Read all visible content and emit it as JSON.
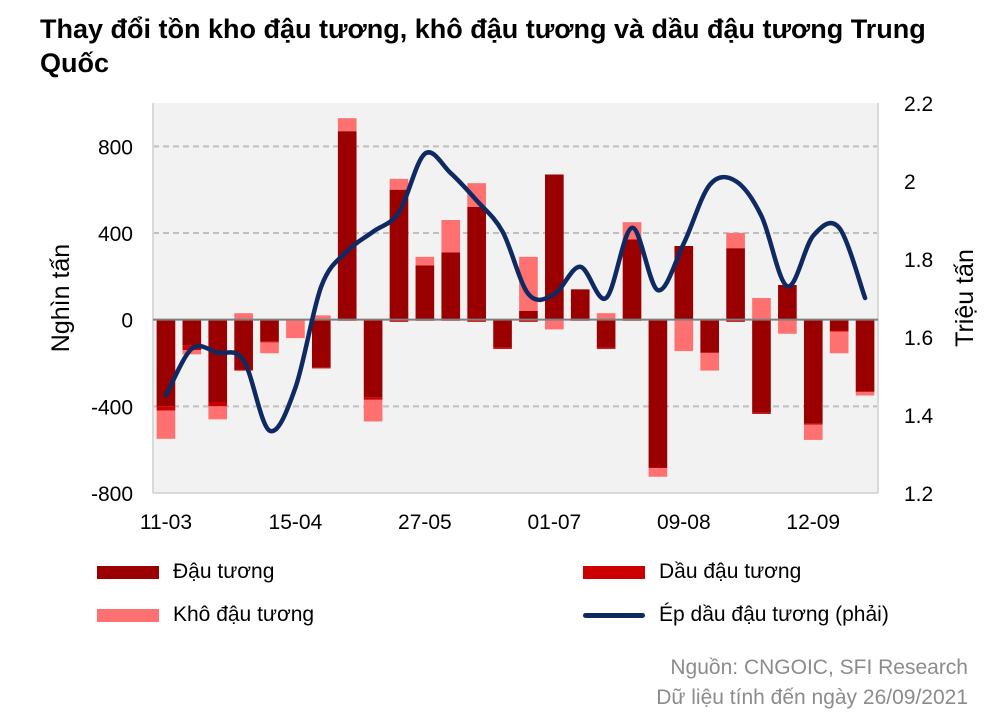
{
  "title": "Thay đổi tồn kho đậu tương, khô đậu tương và dầu đậu tương Trung Quốc",
  "source_line1": "Nguồn: CNGOIC, SFI Research",
  "source_line2": "Dữ liệu tính đến ngày 26/09/2021",
  "colors": {
    "soybean": "#9b0000",
    "soyoil": "#cc0000",
    "soymeal": "#ff7171",
    "crush": "#0f2a63",
    "plot_bg": "#f2f2f2",
    "grid": "#bfbfbf"
  },
  "chart_data": {
    "type": "bar",
    "ylabel": "Nghìn tấn",
    "y2label": "Triệu tấn",
    "ylim": [
      -800,
      1000
    ],
    "yticks": [
      -800,
      -400,
      0,
      400,
      800
    ],
    "y2lim": [
      1.2,
      2.2
    ],
    "y2ticks": [
      "1.2",
      "1.4",
      "1.6",
      "1.8",
      "2",
      "2.2"
    ],
    "x_tick_labels": [
      "11-03",
      "15-04",
      "27-05",
      "01-07",
      "09-08",
      "12-09"
    ],
    "x_tick_indices": [
      0,
      5,
      10,
      15,
      20,
      25
    ],
    "grid": true,
    "legend_position": "bottom",
    "series": [
      {
        "name": "Đậu tương",
        "key": "soybean",
        "values": [
          -400,
          -120,
          -380,
          -230,
          -100,
          0,
          -220,
          870,
          -360,
          600,
          250,
          310,
          520,
          -130,
          40,
          670,
          140,
          -130,
          370,
          -680,
          340,
          -150,
          330,
          -430,
          160,
          -480,
          -50,
          -330
        ]
      },
      {
        "name": "Dầu đậu tương",
        "key": "soyoil",
        "values": [
          -20,
          -20,
          -20,
          -5,
          -5,
          -5,
          -5,
          -5,
          -10,
          -10,
          -5,
          -5,
          -10,
          -5,
          -10,
          -5,
          -5,
          -5,
          -5,
          -5,
          -5,
          -5,
          -10,
          -5,
          -5,
          -5,
          -5,
          -5
        ]
      },
      {
        "name": "Khô đậu tương",
        "key": "soymeal",
        "values": [
          -130,
          -20,
          -60,
          30,
          -50,
          -80,
          20,
          60,
          -100,
          50,
          40,
          150,
          110,
          0,
          250,
          -40,
          0,
          30,
          80,
          -40,
          -140,
          -80,
          70,
          100,
          -60,
          -70,
          -100,
          -15
        ]
      },
      {
        "name": "Ép dầu đậu tương (phải)",
        "key": "crush",
        "axis": "right",
        "values": [
          1.45,
          1.57,
          1.56,
          1.54,
          1.36,
          1.47,
          1.73,
          1.82,
          1.87,
          1.92,
          2.07,
          2.02,
          1.95,
          1.87,
          1.71,
          1.71,
          1.78,
          1.7,
          1.88,
          1.72,
          1.84,
          1.99,
          2.0,
          1.91,
          1.73,
          1.86,
          1.88,
          1.7
        ]
      }
    ]
  }
}
